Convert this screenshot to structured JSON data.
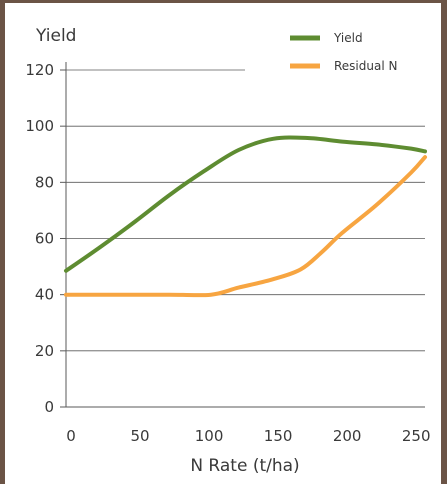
{
  "chart_data": {
    "type": "line",
    "ylabel": "Yield",
    "xlabel": "N Rate (t/ha)",
    "xlim": [
      0,
      260
    ],
    "ylim": [
      0,
      120
    ],
    "xticks": [
      0,
      50,
      100,
      150,
      200,
      250
    ],
    "yticks": [
      0,
      20,
      40,
      60,
      80,
      100,
      120
    ],
    "grid": "horizontal",
    "legend_position": "top-right",
    "series": [
      {
        "name": "Yield",
        "color": "#5e8c31",
        "x": [
          0,
          25,
          50,
          75,
          100,
          125,
          150,
          175,
          200,
          225,
          250,
          260
        ],
        "y": [
          48.5,
          57,
          66,
          75.5,
          84,
          91.5,
          95.5,
          95.8,
          94.5,
          93.5,
          92,
          91
        ]
      },
      {
        "name": "Residual N",
        "color": "#f7a541",
        "x": [
          0,
          25,
          50,
          75,
          105,
          125,
          150,
          170,
          185,
          200,
          225,
          250,
          260
        ],
        "y": [
          40,
          40,
          40,
          40,
          40,
          42.5,
          45.5,
          49,
          55,
          62,
          72,
          83.5,
          89
        ]
      }
    ]
  }
}
